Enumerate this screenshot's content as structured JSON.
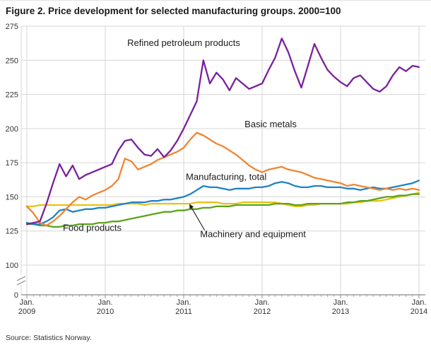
{
  "title": "Figure 2. Price development for selected manufacturing groups. 2000=100",
  "source": "Source: Statistics Norway.",
  "chart_data": {
    "type": "line",
    "title": "Figure 2. Price development for selected manufacturing groups. 2000=100",
    "xlabel": "",
    "ylabel": "",
    "index_base": "2000=100",
    "y_axis": {
      "ticks": [
        275,
        250,
        225,
        200,
        175,
        150,
        125,
        100
      ],
      "zero_label": "0",
      "axis_break": true,
      "range_shown": [
        100,
        275
      ]
    },
    "x_axis": {
      "months_span": 60,
      "ticks": [
        {
          "month": 0,
          "line1": "Jan.",
          "line2": "2009"
        },
        {
          "month": 12,
          "line1": "Jan.",
          "line2": "2010"
        },
        {
          "month": 24,
          "line1": "Jan.",
          "line2": "2011"
        },
        {
          "month": 36,
          "line1": "Jan.",
          "line2": "2012"
        },
        {
          "month": 48,
          "line1": "Jan.",
          "line2": "2013"
        },
        {
          "month": 60,
          "line1": "Jan.",
          "line2": "2014"
        }
      ]
    },
    "series": [
      {
        "name": "Food products",
        "color": "#e7c11a",
        "values": [
          143,
          143,
          144,
          144,
          144,
          144,
          144,
          144,
          144,
          144,
          144,
          144,
          144,
          144,
          145,
          145,
          145,
          145,
          144,
          145,
          145,
          145,
          145,
          145,
          145,
          145,
          146,
          146,
          146,
          146,
          145,
          145,
          145,
          146,
          146,
          146,
          146,
          146,
          146,
          145,
          144,
          143,
          143,
          144,
          144,
          145,
          145,
          145,
          145,
          145,
          146,
          146,
          147,
          147,
          147,
          148,
          149,
          150,
          151,
          152,
          153
        ]
      },
      {
        "name": "Machinery and equipment",
        "color": "#5aa419",
        "values": [
          130,
          130,
          129,
          129,
          128,
          128,
          129,
          129,
          130,
          130,
          130,
          131,
          131,
          132,
          132,
          133,
          134,
          135,
          136,
          137,
          138,
          139,
          139,
          140,
          140,
          141,
          141,
          142,
          142,
          143,
          143,
          143,
          144,
          144,
          144,
          144,
          144,
          144,
          145,
          145,
          145,
          144,
          144,
          145,
          145,
          145,
          145,
          145,
          145,
          146,
          146,
          147,
          147,
          148,
          149,
          150,
          150,
          151,
          151,
          152,
          152
        ]
      },
      {
        "name": "Manufacturing, total",
        "color": "#1f83c4",
        "values": [
          131,
          130,
          130,
          132,
          135,
          140,
          141,
          139,
          140,
          141,
          141,
          142,
          142,
          143,
          144,
          145,
          146,
          146,
          146,
          147,
          147,
          148,
          148,
          149,
          150,
          152,
          155,
          158,
          157,
          157,
          156,
          155,
          156,
          156,
          156,
          157,
          157,
          158,
          160,
          161,
          160,
          158,
          157,
          157,
          158,
          158,
          157,
          157,
          157,
          156,
          156,
          155,
          156,
          157,
          156,
          156,
          157,
          158,
          159,
          160,
          162
        ]
      },
      {
        "name": "Basic metals",
        "color": "#f08532",
        "values": [
          143,
          138,
          131,
          129,
          132,
          136,
          141,
          146,
          150,
          148,
          151,
          153,
          155,
          158,
          163,
          178,
          176,
          170,
          172,
          174,
          177,
          179,
          181,
          183,
          186,
          192,
          197,
          195,
          192,
          189,
          187,
          184,
          181,
          177,
          173,
          170,
          168,
          170,
          171,
          172,
          170,
          169,
          168,
          166,
          164,
          163,
          162,
          161,
          160,
          158,
          159,
          158,
          157,
          156,
          155,
          156,
          155,
          156,
          155,
          156,
          155
        ]
      },
      {
        "name": "Refined petroleum products",
        "color": "#7a219c",
        "values": [
          130,
          131,
          132,
          145,
          160,
          174,
          165,
          173,
          163,
          166,
          168,
          170,
          172,
          174,
          184,
          191,
          192,
          186,
          181,
          180,
          185,
          179,
          184,
          191,
          200,
          210,
          220,
          250,
          233,
          241,
          236,
          228,
          237,
          233,
          229,
          231,
          233,
          243,
          252,
          266,
          256,
          242,
          230,
          246,
          262,
          252,
          243,
          238,
          234,
          231,
          237,
          239,
          234,
          229,
          227,
          231,
          239,
          245,
          242,
          246,
          245
        ]
      }
    ],
    "annotations": [
      {
        "text": "Refined petroleum products",
        "month": 24,
        "value": 260.5,
        "anchor": "middle"
      },
      {
        "text": "Basic metals",
        "month": 37.3,
        "value": 201,
        "anchor": "middle"
      },
      {
        "text": "Manufacturing, total",
        "month": 30.5,
        "value": 162.5,
        "anchor": "middle"
      },
      {
        "text": "Food products",
        "month": 10,
        "value": 125,
        "anchor": "middle"
      },
      {
        "text": "Machinery and equipment",
        "month": 34.6,
        "value": 120.5,
        "anchor": "middle"
      }
    ],
    "arrow": {
      "from": {
        "month": 27.2,
        "value": 125.5
      },
      "to": {
        "month": 24.9,
        "value": 144.5
      }
    },
    "colors": {
      "grid": "#d6d6d6",
      "axis": "#8a8a8a",
      "tick_text": "#333333",
      "annotation_text": "#1a1a1a",
      "background": "#ffffff"
    },
    "legend_position": "inline-annotations",
    "grid": true
  }
}
